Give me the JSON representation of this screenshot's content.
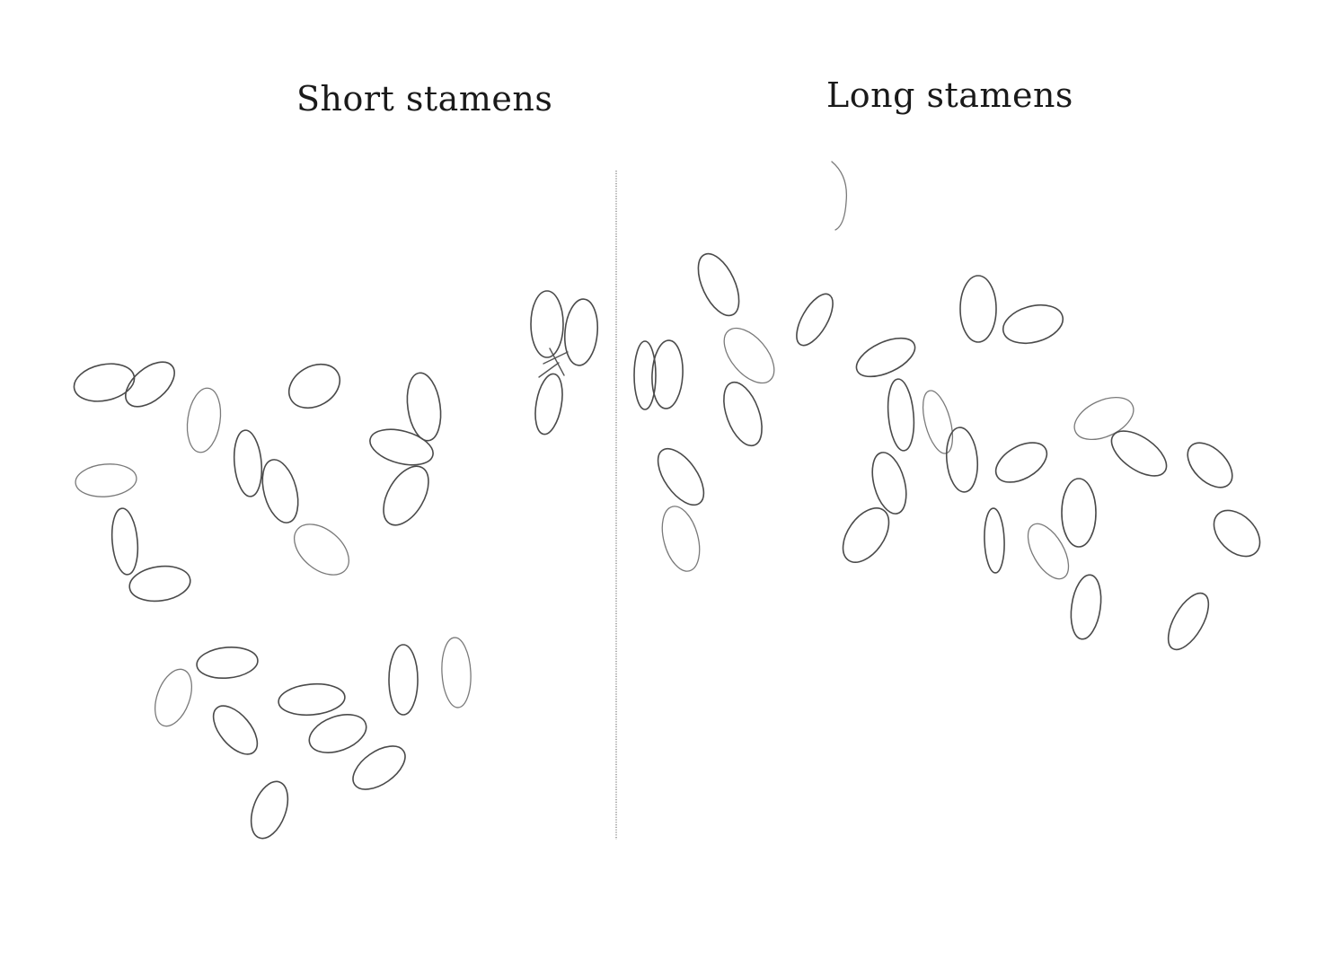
{
  "panels": {
    "short": {
      "title": "Short stamens"
    },
    "long": {
      "title": "Long stamens"
    }
  },
  "colors": {
    "background": "#ffffff",
    "outline": "#4a4a4a",
    "divider": "#8a8a8a"
  }
}
